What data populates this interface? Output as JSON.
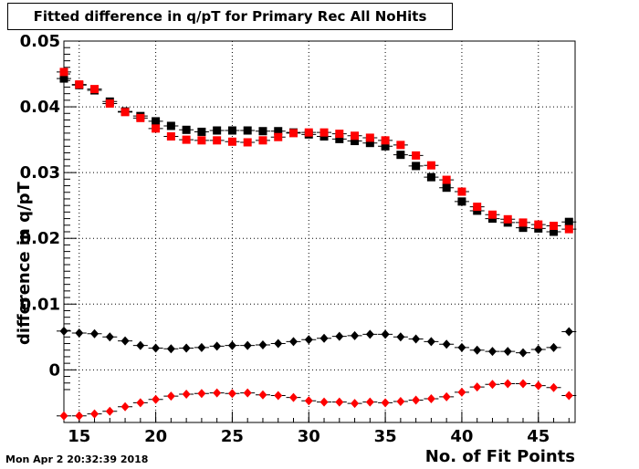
{
  "chart_data": {
    "type": "scatter",
    "title": "Fitted difference in q/pT for Primary Rec All NoHits",
    "xlabel": "No. of Fit Points",
    "ylabel": "difference in q/pT",
    "timestamp": "Mon Apr  2 20:32:39 2018",
    "xlim": [
      14,
      47.4
    ],
    "ylim": [
      -0.008,
      0.05
    ],
    "xticks": [
      15,
      20,
      25,
      30,
      35,
      40,
      45
    ],
    "xtick_labels": [
      "15",
      "20",
      "25",
      "30",
      "35",
      "40",
      "45"
    ],
    "yticks": [
      0,
      0.01,
      0.02,
      0.03,
      0.04,
      0.05
    ],
    "ytick_labels": [
      "0",
      "0.01",
      "0.02",
      "0.03",
      "0.04",
      "0.05"
    ],
    "grid": true,
    "x": [
      14,
      15,
      16,
      17,
      18,
      19,
      20,
      21,
      22,
      23,
      24,
      25,
      26,
      27,
      28,
      29,
      30,
      31,
      32,
      33,
      34,
      35,
      36,
      37,
      38,
      39,
      40,
      41,
      42,
      43,
      44,
      45,
      46,
      47
    ],
    "series": [
      {
        "marker": "square",
        "color": "#000000",
        "values": [
          0.0443,
          0.0433,
          0.0425,
          0.0408,
          0.0393,
          0.0386,
          0.0378,
          0.0371,
          0.0365,
          0.0362,
          0.0364,
          0.0364,
          0.0364,
          0.0363,
          0.0363,
          0.0361,
          0.0358,
          0.0355,
          0.0351,
          0.0348,
          0.0345,
          0.034,
          0.0327,
          0.031,
          0.0293,
          0.0277,
          0.0256,
          0.0242,
          0.023,
          0.0224,
          0.0216,
          0.0215,
          0.021,
          0.0225
        ]
      },
      {
        "marker": "square",
        "color": "#ff0000",
        "values": [
          0.0453,
          0.0434,
          0.0427,
          0.0405,
          0.0392,
          0.0383,
          0.0367,
          0.0355,
          0.035,
          0.0349,
          0.0349,
          0.0347,
          0.0346,
          0.0349,
          0.0354,
          0.036,
          0.0361,
          0.0361,
          0.0359,
          0.0356,
          0.0353,
          0.0349,
          0.0342,
          0.0326,
          0.0311,
          0.0289,
          0.0271,
          0.0248,
          0.0236,
          0.0229,
          0.0224,
          0.0221,
          0.0219,
          0.0214
        ]
      },
      {
        "marker": "diamond",
        "color": "#000000",
        "values": [
          0.0059,
          0.0056,
          0.0055,
          0.005,
          0.0044,
          0.0037,
          0.0033,
          0.0032,
          0.0033,
          0.0034,
          0.0036,
          0.0037,
          0.0037,
          0.0038,
          0.004,
          0.0043,
          0.0046,
          0.0048,
          0.0051,
          0.0052,
          0.0054,
          0.0054,
          0.005,
          0.0047,
          0.0043,
          0.0039,
          0.0034,
          0.003,
          0.0028,
          0.0028,
          0.0026,
          0.0031,
          0.0034,
          0.0058
        ]
      },
      {
        "marker": "diamond",
        "color": "#ff0000",
        "values": [
          -0.007,
          -0.007,
          -0.0067,
          -0.0063,
          -0.0056,
          -0.005,
          -0.0045,
          -0.004,
          -0.0037,
          -0.0036,
          -0.0035,
          -0.0036,
          -0.0035,
          -0.0038,
          -0.0039,
          -0.0042,
          -0.0047,
          -0.0049,
          -0.0049,
          -0.0051,
          -0.0049,
          -0.005,
          -0.0048,
          -0.0046,
          -0.0044,
          -0.0041,
          -0.0034,
          -0.0026,
          -0.0022,
          -0.0021,
          -0.0021,
          -0.0024,
          -0.0027,
          -0.0039
        ]
      }
    ]
  }
}
